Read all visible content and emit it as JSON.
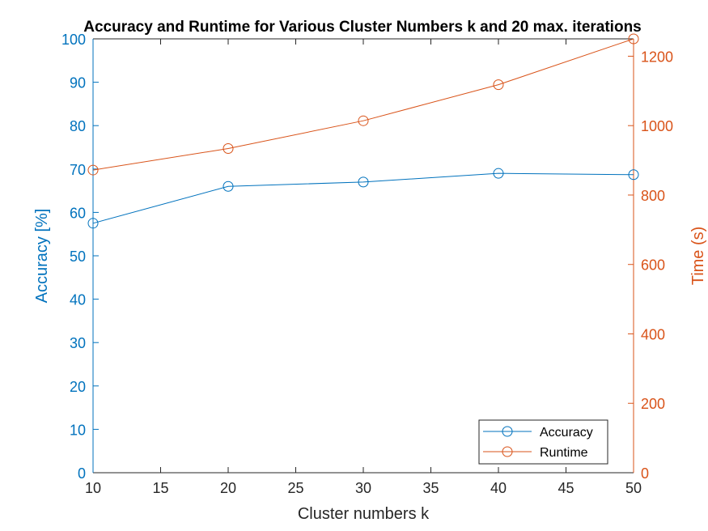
{
  "chart_data": {
    "type": "line",
    "title": "Accuracy and Runtime for Various Cluster Numbers k and 20 max. iterations",
    "xlabel": "Cluster numbers k",
    "ylabel_left": "Accuracy [%]",
    "ylabel_right": "Time (s)",
    "x": [
      10,
      20,
      30,
      40,
      50
    ],
    "xlim": [
      10,
      50
    ],
    "xticks": [
      "10",
      "15",
      "20",
      "25",
      "30",
      "35",
      "40",
      "45",
      "50"
    ],
    "ylim_left": [
      0,
      100
    ],
    "yticks_left": [
      "0",
      "10",
      "20",
      "30",
      "40",
      "50",
      "60",
      "70",
      "80",
      "90",
      "100"
    ],
    "ylim_right": [
      0,
      1250
    ],
    "yticks_right": [
      "0",
      "200",
      "400",
      "600",
      "800",
      "1000",
      "1200"
    ],
    "series": [
      {
        "name": "Accuracy",
        "axis": "left",
        "color": "#0072BD",
        "marker": "circle",
        "values": [
          57.5,
          66.0,
          67.0,
          69.0,
          68.7
        ]
      },
      {
        "name": "Runtime",
        "axis": "right",
        "color": "#D95319",
        "marker": "circle",
        "values": [
          872,
          934,
          1014,
          1118,
          1250
        ]
      }
    ],
    "legend_position": "bottom-right",
    "grid": false
  }
}
